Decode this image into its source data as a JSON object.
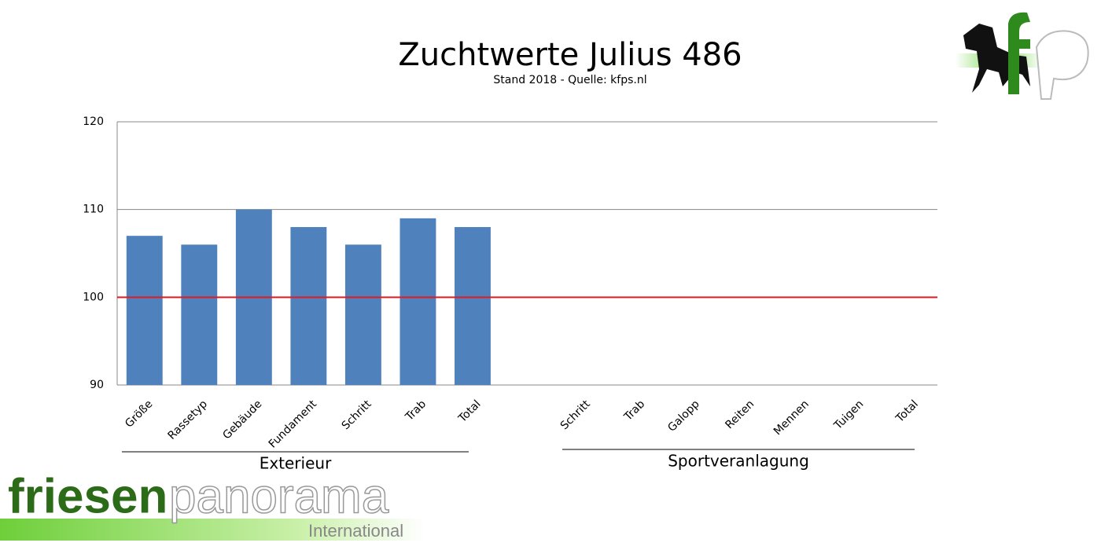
{
  "chart_data": {
    "type": "bar",
    "title": "Zuchtwerte Julius 486",
    "subtitle": "Stand 2018 - Quelle: kfps.nl",
    "categories": [
      "Größe",
      "Rassetyp",
      "Gebäude",
      "Fundament",
      "Schritt",
      "Trab",
      "Total",
      null,
      "Schritt",
      "Trab",
      "Galopp",
      "Reiten",
      "Mennen",
      "Tuigen",
      "Total"
    ],
    "values": [
      107,
      106,
      110,
      108,
      106,
      109,
      108,
      null,
      null,
      null,
      null,
      null,
      null,
      null,
      null
    ],
    "color": "#4f81bd",
    "ylim": [
      90,
      120
    ],
    "yticks": [
      90,
      100,
      110,
      120
    ],
    "grid": true,
    "reference_line": {
      "value": 100,
      "color": "#e31b23"
    },
    "groups": [
      "Exterieur",
      "Sportveranlagung"
    ]
  },
  "logo": {
    "word1": "friesen",
    "word2": "panorama",
    "word3": "International"
  }
}
